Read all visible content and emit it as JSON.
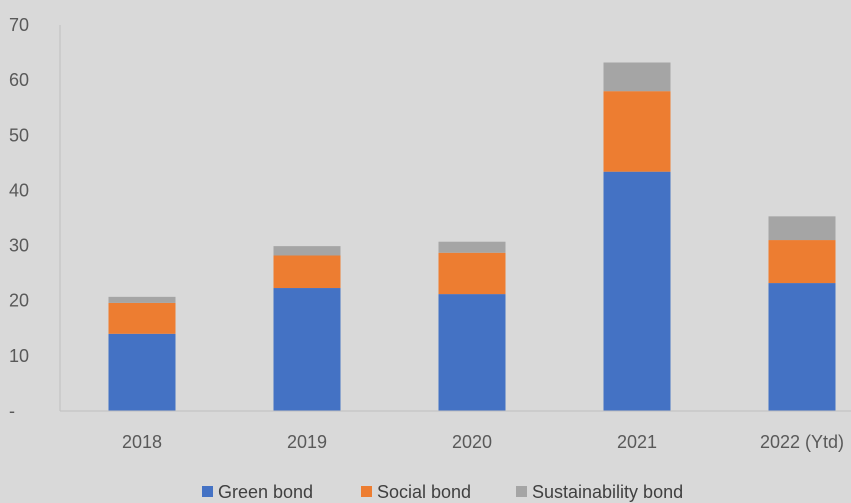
{
  "chart_data": {
    "type": "bar",
    "stacked": true,
    "categories": [
      "2018",
      "2019",
      "2020",
      "2021",
      "2022 (Ytd)"
    ],
    "series": [
      {
        "name": "Green bond",
        "color": "#4472c4",
        "values": [
          14,
          22.3,
          21.2,
          43.4,
          23.2
        ]
      },
      {
        "name": "Social bond",
        "color": "#ed7d31",
        "values": [
          5.6,
          5.9,
          7.5,
          14.6,
          7.8
        ]
      },
      {
        "name": "Sustainability bond",
        "color": "#a5a5a5",
        "values": [
          1.1,
          1.7,
          2.0,
          5.2,
          4.3
        ]
      }
    ],
    "ylim": [
      0,
      70
    ],
    "yticks": [
      0,
      10,
      20,
      30,
      40,
      50,
      60,
      70
    ],
    "ytick_labels": [
      "-",
      "10",
      "20",
      "30",
      "40",
      "50",
      "60",
      "70"
    ],
    "grid": false,
    "legend_position": "bottom",
    "background": "#d9d9d9"
  }
}
